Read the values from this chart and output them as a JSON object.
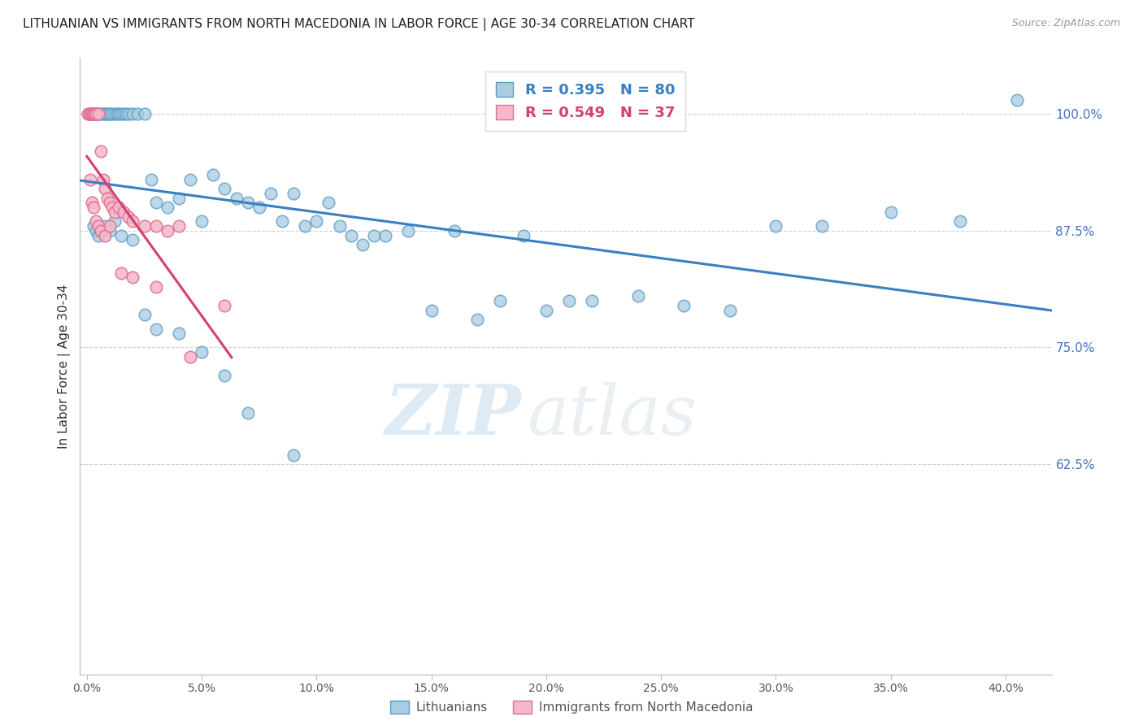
{
  "title": "LITHUANIAN VS IMMIGRANTS FROM NORTH MACEDONIA IN LABOR FORCE | AGE 30-34 CORRELATION CHART",
  "source": "Source: ZipAtlas.com",
  "ylabel": "In Labor Force | Age 30-34",
  "right_yticks": [
    62.5,
    75.0,
    87.5,
    100.0
  ],
  "right_ytick_labels": [
    "62.5%",
    "75.0%",
    "87.5%",
    "100.0%"
  ],
  "watermark_zip": "ZIP",
  "watermark_atlas": "atlas",
  "legend_blue_r": "R = 0.395",
  "legend_blue_n": "N = 80",
  "legend_pink_r": "R = 0.549",
  "legend_pink_n": "N = 37",
  "blue_color": "#a8cce0",
  "blue_edge_color": "#5b9dc9",
  "pink_color": "#f5b8cb",
  "pink_edge_color": "#e07090",
  "blue_line_color": "#3a7fc1",
  "pink_line_color": "#d44070",
  "blue_label": "Lithuanians",
  "pink_label": "Immigrants from North Macedonia",
  "x_lim_min": -0.3,
  "x_lim_max": 42.0,
  "y_lim_min": 40.0,
  "y_lim_max": 106.0,
  "x_ticks": [
    0,
    5,
    10,
    15,
    20,
    25,
    30,
    35,
    40
  ],
  "grid_color": "#d0d0d0",
  "title_fontsize": 11,
  "source_fontsize": 9,
  "tick_fontsize": 10,
  "ylabel_fontsize": 11,
  "legend_fontsize": 13,
  "blue_x": [
    0.1,
    0.2,
    0.3,
    0.3,
    0.4,
    0.5,
    0.5,
    0.6,
    0.7,
    0.8,
    0.8,
    0.9,
    1.0,
    1.0,
    1.1,
    1.2,
    1.3,
    1.4,
    1.5,
    1.6,
    1.7,
    1.8,
    2.0,
    2.2,
    2.5,
    2.8,
    3.0,
    3.5,
    4.0,
    4.5,
    5.0,
    5.5,
    6.0,
    6.5,
    7.0,
    7.5,
    8.0,
    8.5,
    9.0,
    9.5,
    10.0,
    10.5,
    11.0,
    11.5,
    12.0,
    12.5,
    13.0,
    14.0,
    15.0,
    16.0,
    17.0,
    18.0,
    19.0,
    20.0,
    21.0,
    22.0,
    24.0,
    26.0,
    28.0,
    30.0,
    32.0,
    35.0,
    38.0,
    40.5,
    0.3,
    0.4,
    0.5,
    0.6,
    0.8,
    1.0,
    1.2,
    1.5,
    2.0,
    2.5,
    3.0,
    4.0,
    5.0,
    6.0,
    7.0,
    9.0
  ],
  "blue_y": [
    100.0,
    100.0,
    100.0,
    100.0,
    100.0,
    100.0,
    100.0,
    100.0,
    100.0,
    100.0,
    100.0,
    100.0,
    100.0,
    100.0,
    100.0,
    100.0,
    100.0,
    100.0,
    100.0,
    100.0,
    100.0,
    100.0,
    100.0,
    100.0,
    100.0,
    93.0,
    90.5,
    90.0,
    91.0,
    93.0,
    88.5,
    93.5,
    92.0,
    91.0,
    90.5,
    90.0,
    91.5,
    88.5,
    91.5,
    88.0,
    88.5,
    90.5,
    88.0,
    87.0,
    86.0,
    87.0,
    87.0,
    87.5,
    79.0,
    87.5,
    78.0,
    80.0,
    87.0,
    79.0,
    80.0,
    80.0,
    80.5,
    79.5,
    79.0,
    88.0,
    88.0,
    89.5,
    88.5,
    101.5,
    88.0,
    87.5,
    87.0,
    87.5,
    88.0,
    87.5,
    88.5,
    87.0,
    86.5,
    78.5,
    77.0,
    76.5,
    74.5,
    72.0,
    68.0,
    63.5
  ],
  "pink_x": [
    0.05,
    0.1,
    0.15,
    0.2,
    0.25,
    0.3,
    0.35,
    0.4,
    0.5,
    0.6,
    0.7,
    0.8,
    0.9,
    1.0,
    1.1,
    1.2,
    1.4,
    1.6,
    1.8,
    2.0,
    2.5,
    3.0,
    3.5,
    4.0,
    0.15,
    0.2,
    0.3,
    0.4,
    0.5,
    0.6,
    0.8,
    1.0,
    1.5,
    2.0,
    3.0,
    4.5,
    6.0
  ],
  "pink_y": [
    100.0,
    100.0,
    100.0,
    100.0,
    100.0,
    100.0,
    100.0,
    100.0,
    100.0,
    96.0,
    93.0,
    92.0,
    91.0,
    90.5,
    90.0,
    89.5,
    90.0,
    89.5,
    89.0,
    88.5,
    88.0,
    88.0,
    87.5,
    88.0,
    93.0,
    90.5,
    90.0,
    88.5,
    88.0,
    87.5,
    87.0,
    88.0,
    83.0,
    82.5,
    81.5,
    74.0,
    79.5
  ]
}
